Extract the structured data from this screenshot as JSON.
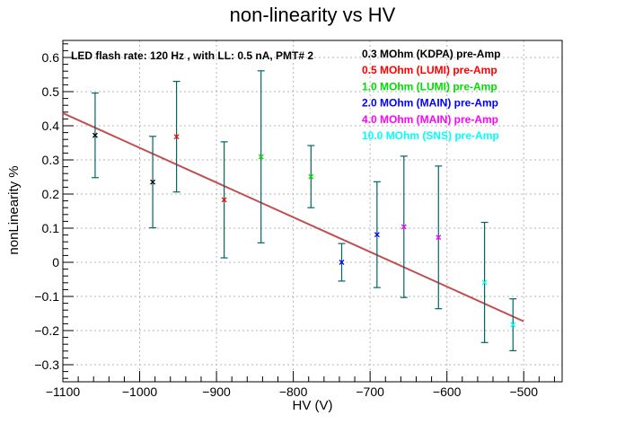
{
  "chart_data": {
    "type": "scatter",
    "title": "non-linearity vs HV",
    "xlabel": "HV (V)",
    "ylabel": "nonLinearity %",
    "xlim": [
      -1100,
      -450
    ],
    "ylim": [
      -0.35,
      0.65
    ],
    "x_ticks": [
      -1100,
      -1000,
      -900,
      -800,
      -700,
      -600,
      -500
    ],
    "x_tick_labels": [
      "−1100",
      "−1000",
      "−900",
      "−800",
      "−700",
      "−600",
      "−500"
    ],
    "y_ticks": [
      -0.3,
      -0.2,
      -0.1,
      0,
      0.1,
      0.2,
      0.3,
      0.4,
      0.5,
      0.6
    ],
    "y_tick_labels": [
      "−0.3",
      "−0.2",
      "−0.1",
      "0",
      "0.1",
      "0.2",
      "0.3",
      "0.4",
      "0.5",
      "0.6"
    ],
    "grid": true,
    "legend_position": "top-right",
    "annotation": "LED flash rate: 120 Hz , with LL: 0.5 nA, PMT# 2",
    "error_bar_color": "#006666",
    "fit_line": {
      "color": "#c05050",
      "x": [
        -1100,
        -500
      ],
      "y": [
        0.437,
        -0.173
      ]
    },
    "series": [
      {
        "name": "0.3 MOhm (KDPA) pre-Amp",
        "color": "#000000",
        "points": [
          {
            "x": -1058,
            "y": 0.372,
            "err": 0.124
          },
          {
            "x": -983,
            "y": 0.235,
            "err": 0.134
          }
        ]
      },
      {
        "name": "0.5 MOhm (LUMI) pre-Amp",
        "color": "#ff0000",
        "points": [
          {
            "x": -952,
            "y": 0.368,
            "err": 0.162
          },
          {
            "x": -890,
            "y": 0.183,
            "err": 0.17
          }
        ]
      },
      {
        "name": "1.0 MOhm (LUMI) pre-Amp",
        "color": "#00dd00",
        "points": [
          {
            "x": -842,
            "y": 0.309,
            "err": 0.252
          },
          {
            "x": -777,
            "y": 0.251,
            "err": 0.091
          }
        ]
      },
      {
        "name": "2.0 MOhm (MAIN) pre-Amp",
        "color": "#0000ff",
        "points": [
          {
            "x": -737,
            "y": 0.0,
            "err": 0.055
          },
          {
            "x": -691,
            "y": 0.081,
            "err": 0.155
          }
        ]
      },
      {
        "name": "4.0 MOhm (MAIN) pre-Amp",
        "color": "#ff00ff",
        "points": [
          {
            "x": -656,
            "y": 0.104,
            "err": 0.207
          },
          {
            "x": -611,
            "y": 0.073,
            "err": 0.209
          }
        ]
      },
      {
        "name": "10.0 MOhm (SNS) pre-Amp",
        "color": "#00ffff",
        "points": [
          {
            "x": -551,
            "y": -0.059,
            "err": 0.176
          },
          {
            "x": -514,
            "y": -0.183,
            "err": 0.076
          }
        ]
      }
    ]
  }
}
